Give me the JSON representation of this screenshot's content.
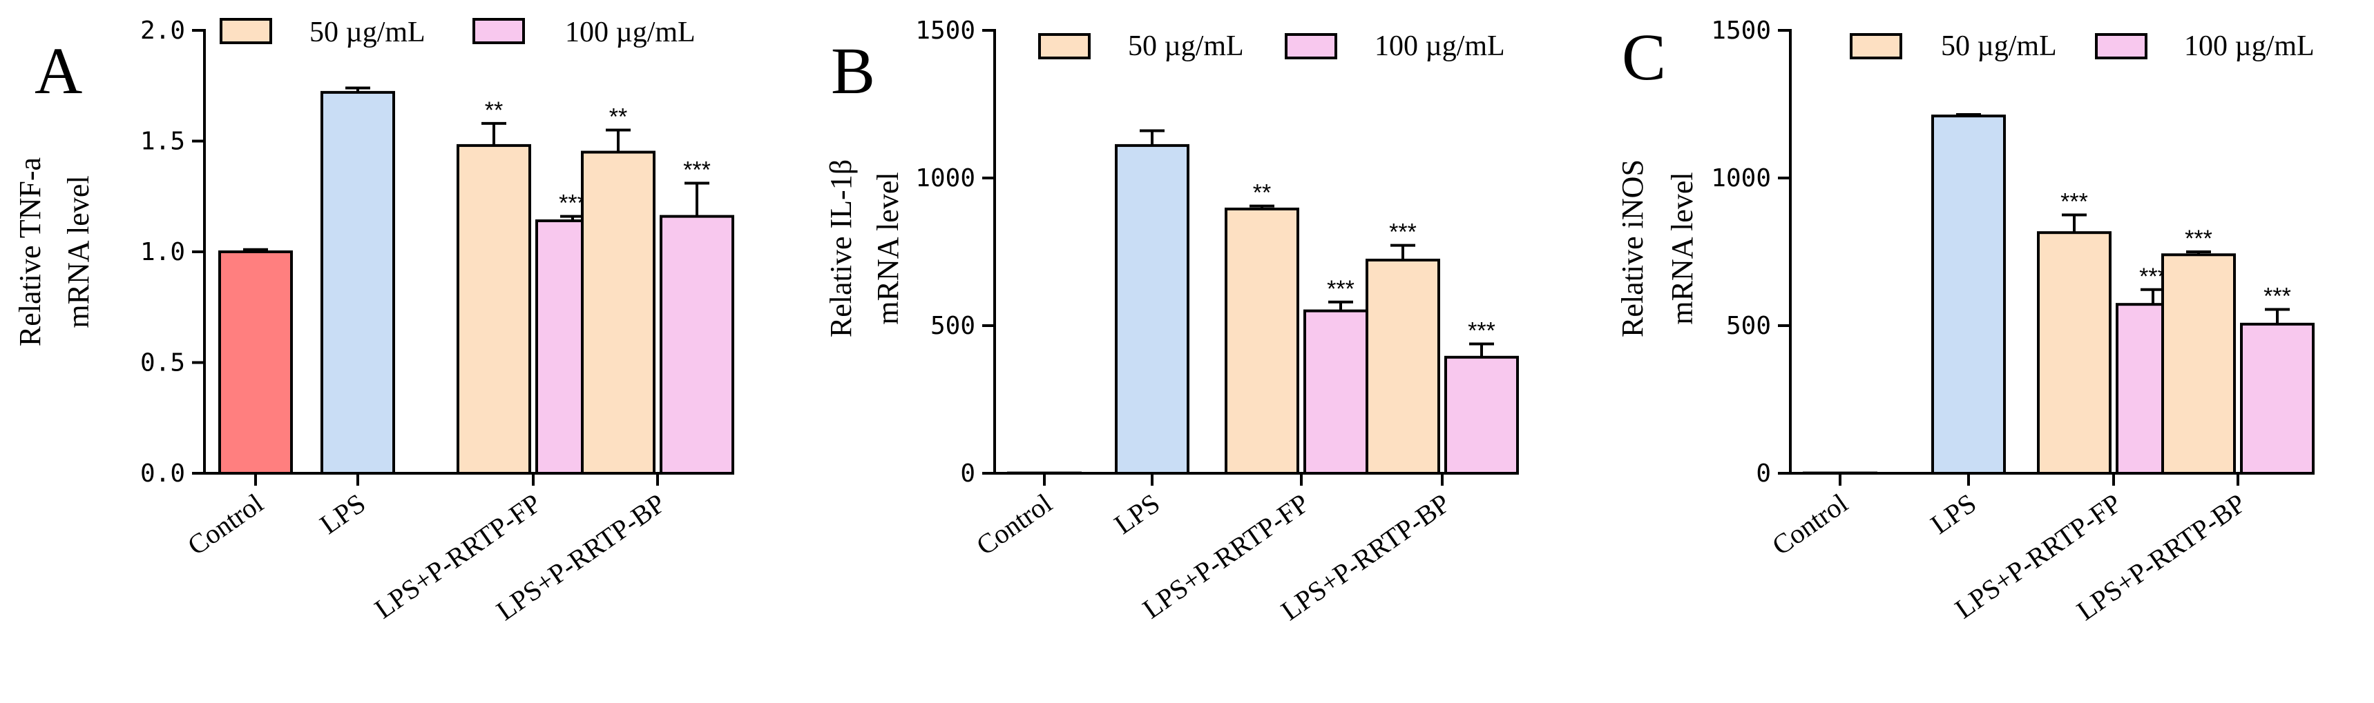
{
  "chart_data": [
    {
      "panel": "A",
      "type": "bar",
      "ylabel": [
        "Relative TNF-a",
        "mRNA level"
      ],
      "ylim": [
        0,
        2.0
      ],
      "yticks": [
        "0.0",
        "0.5",
        "1.0",
        "1.5",
        "2.0"
      ],
      "ytick_values": [
        0,
        0.5,
        1.0,
        1.5,
        2.0
      ],
      "categories": [
        "Control",
        "LPS",
        "LPS+P-RRTP-FP",
        "LPS+P-RRTP-BP"
      ],
      "legend": [
        "50 µg/mL",
        "100 µg/mL"
      ],
      "bars": [
        {
          "group": 0,
          "slot": "single",
          "value": 1.0,
          "error": 0.01,
          "color": "#ff7f7f",
          "sig": ""
        },
        {
          "group": 1,
          "slot": "single",
          "value": 1.72,
          "error": 0.02,
          "color": "#c9ddf5",
          "sig": ""
        },
        {
          "group": 2,
          "slot": "left",
          "value": 1.48,
          "error": 0.1,
          "color": "#fde0c2",
          "sig": "**"
        },
        {
          "group": 2,
          "slot": "right",
          "value": 1.14,
          "error": 0.02,
          "color": "#f8c8ee",
          "sig": "***"
        },
        {
          "group": 3,
          "slot": "left",
          "value": 1.45,
          "error": 0.1,
          "color": "#fde0c2",
          "sig": "**"
        },
        {
          "group": 3,
          "slot": "right",
          "value": 1.16,
          "error": 0.15,
          "color": "#f8c8ee",
          "sig": "***"
        }
      ]
    },
    {
      "panel": "B",
      "type": "bar",
      "ylabel": [
        "Relative IL-1β",
        "mRNA level"
      ],
      "ylim": [
        0,
        1500
      ],
      "yticks": [
        "0",
        "500",
        "1000",
        "1500"
      ],
      "ytick_values": [
        0,
        500,
        1000,
        1500
      ],
      "categories": [
        "Control",
        "LPS",
        "LPS+P-RRTP-FP",
        "LPS+P-RRTP-BP"
      ],
      "legend": [
        "50 µg/mL",
        "100 µg/mL"
      ],
      "bars": [
        {
          "group": 0,
          "slot": "single",
          "value": 1,
          "error": 0,
          "color": "#ff7f7f",
          "sig": ""
        },
        {
          "group": 1,
          "slot": "single",
          "value": 1110,
          "error": 50,
          "color": "#c9ddf5",
          "sig": ""
        },
        {
          "group": 2,
          "slot": "left",
          "value": 895,
          "error": 10,
          "color": "#fde0c2",
          "sig": "**"
        },
        {
          "group": 2,
          "slot": "right",
          "value": 550,
          "error": 30,
          "color": "#f8c8ee",
          "sig": "***"
        },
        {
          "group": 3,
          "slot": "left",
          "value": 722,
          "error": 50,
          "color": "#fde0c2",
          "sig": "***"
        },
        {
          "group": 3,
          "slot": "right",
          "value": 393,
          "error": 45,
          "color": "#f8c8ee",
          "sig": "***"
        }
      ]
    },
    {
      "panel": "C",
      "type": "bar",
      "ylabel": [
        "Relative iNOS",
        "mRNA level"
      ],
      "ylim": [
        0,
        1500
      ],
      "yticks": [
        "0",
        "500",
        "1000",
        "1500"
      ],
      "ytick_values": [
        0,
        500,
        1000,
        1500
      ],
      "categories": [
        "Control",
        "LPS",
        "LPS+P-RRTP-FP",
        "LPS+P-RRTP-BP"
      ],
      "legend": [
        "50 µg/mL",
        "100 µg/mL"
      ],
      "bars": [
        {
          "group": 0,
          "slot": "single",
          "value": 1,
          "error": 0,
          "color": "#ff7f7f",
          "sig": ""
        },
        {
          "group": 1,
          "slot": "single",
          "value": 1210,
          "error": 5,
          "color": "#c9ddf5",
          "sig": ""
        },
        {
          "group": 2,
          "slot": "left",
          "value": 815,
          "error": 60,
          "color": "#fde0c2",
          "sig": "***"
        },
        {
          "group": 2,
          "slot": "right",
          "value": 572,
          "error": 50,
          "color": "#f8c8ee",
          "sig": "***"
        },
        {
          "group": 3,
          "slot": "left",
          "value": 740,
          "error": 10,
          "color": "#fde0c2",
          "sig": "***"
        },
        {
          "group": 3,
          "slot": "right",
          "value": 505,
          "error": 50,
          "color": "#f8c8ee",
          "sig": "***"
        }
      ]
    }
  ],
  "legend_colors": [
    "#fde0c2",
    "#f8c8ee"
  ]
}
